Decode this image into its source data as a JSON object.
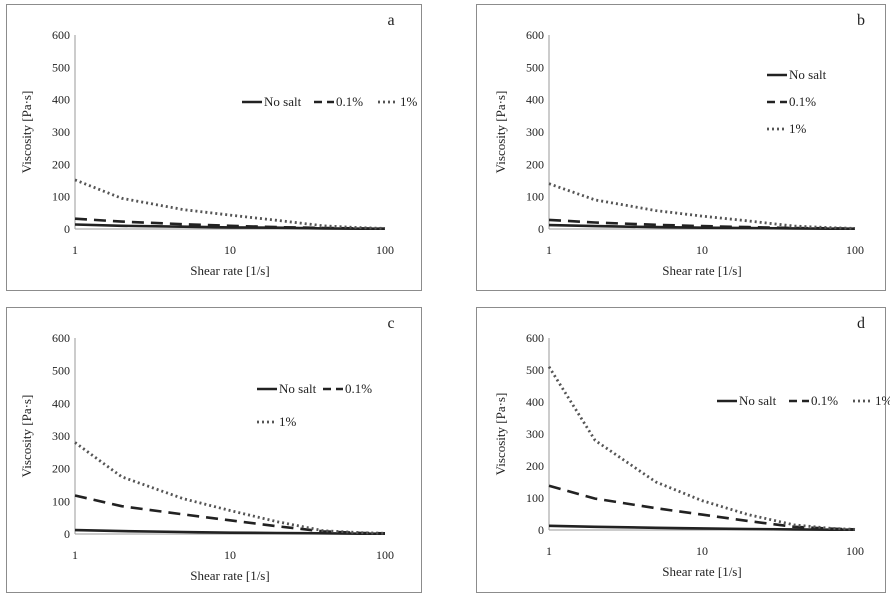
{
  "chart_data": [
    {
      "type": "line",
      "panel_label": "a",
      "xlabel": "Shear rate [1/s]",
      "ylabel": "Viscosity [Pa·s]",
      "x_scale": "log",
      "x_ticks": [
        "1",
        "10",
        "100"
      ],
      "y_ticks": [
        "0",
        "100",
        "200",
        "300",
        "400",
        "500",
        "600"
      ],
      "xlim": [
        1,
        100
      ],
      "ylim": [
        0,
        600
      ],
      "legend_position": "upper-right, single row",
      "series": [
        {
          "name": "No salt",
          "style": "solid",
          "x": [
            1,
            2,
            5,
            10,
            20,
            40,
            70,
            100
          ],
          "values": [
            14,
            10,
            7,
            5,
            4,
            2,
            1,
            1
          ]
        },
        {
          "name": "0.1%",
          "style": "dashed",
          "x": [
            1,
            2,
            5,
            10,
            20,
            40,
            70,
            100
          ],
          "values": [
            32,
            23,
            15,
            10,
            6,
            3,
            2,
            1
          ]
        },
        {
          "name": "1%",
          "style": "dotted",
          "x": [
            1,
            2,
            5,
            10,
            20,
            40,
            70,
            100
          ],
          "values": [
            152,
            95,
            60,
            43,
            27,
            10,
            4,
            2
          ]
        }
      ]
    },
    {
      "type": "line",
      "panel_label": "b",
      "xlabel": "Shear rate [1/s]",
      "ylabel": "Viscosity [Pa·s]",
      "x_scale": "log",
      "x_ticks": [
        "1",
        "10",
        "100"
      ],
      "y_ticks": [
        "0",
        "100",
        "200",
        "300",
        "400",
        "500",
        "600"
      ],
      "xlim": [
        1,
        100
      ],
      "ylim": [
        0,
        600
      ],
      "legend_position": "right, stacked",
      "series": [
        {
          "name": "No salt",
          "style": "solid",
          "x": [
            1,
            2,
            5,
            10,
            20,
            40,
            70,
            100
          ],
          "values": [
            12,
            9,
            6,
            4,
            3,
            2,
            1,
            1
          ]
        },
        {
          "name": "0.1%",
          "style": "dashed",
          "x": [
            1,
            2,
            5,
            10,
            20,
            40,
            70,
            100
          ],
          "values": [
            28,
            20,
            13,
            9,
            6,
            3,
            2,
            1
          ]
        },
        {
          "name": "1%",
          "style": "dotted",
          "x": [
            1,
            2,
            5,
            10,
            20,
            40,
            70,
            100
          ],
          "values": [
            140,
            90,
            57,
            40,
            25,
            9,
            4,
            2
          ]
        }
      ]
    },
    {
      "type": "line",
      "panel_label": "c",
      "xlabel": "Shear rate [1/s]",
      "ylabel": "Viscosity [Pa·s]",
      "x_scale": "log",
      "x_ticks": [
        "1",
        "10",
        "100"
      ],
      "y_ticks": [
        "0",
        "100",
        "200",
        "300",
        "400",
        "500",
        "600"
      ],
      "xlim": [
        1,
        100
      ],
      "ylim": [
        0,
        600
      ],
      "legend_position": "right, two rows",
      "series": [
        {
          "name": "No salt",
          "style": "solid",
          "x": [
            1,
            2,
            5,
            10,
            20,
            40,
            70,
            100
          ],
          "values": [
            12,
            9,
            6,
            4,
            3,
            2,
            1,
            1
          ]
        },
        {
          "name": "0.1%",
          "style": "dashed",
          "x": [
            1,
            2,
            5,
            10,
            20,
            40,
            70,
            100
          ],
          "values": [
            118,
            85,
            60,
            42,
            24,
            8,
            3,
            2
          ]
        },
        {
          "name": "1%",
          "style": "dotted",
          "x": [
            1,
            2,
            5,
            10,
            20,
            40,
            70,
            100
          ],
          "values": [
            280,
            175,
            108,
            72,
            38,
            10,
            4,
            2
          ]
        }
      ]
    },
    {
      "type": "line",
      "panel_label": "d",
      "xlabel": "Shear rate [1/s]",
      "ylabel": "Viscosity [Pa·s]",
      "x_scale": "log",
      "x_ticks": [
        "1",
        "10",
        "100"
      ],
      "y_ticks": [
        "0",
        "100",
        "200",
        "300",
        "400",
        "500",
        "600"
      ],
      "xlim": [
        1,
        100
      ],
      "ylim": [
        0,
        600
      ],
      "legend_position": "upper-right, single row",
      "series": [
        {
          "name": "No salt",
          "style": "solid",
          "x": [
            1,
            2,
            5,
            10,
            20,
            40,
            70,
            100
          ],
          "values": [
            13,
            10,
            7,
            5,
            3,
            2,
            1,
            1
          ]
        },
        {
          "name": "0.1%",
          "style": "dashed",
          "x": [
            1,
            2,
            5,
            10,
            20,
            40,
            70,
            100
          ],
          "values": [
            138,
            98,
            68,
            48,
            28,
            10,
            4,
            2
          ]
        },
        {
          "name": "1%",
          "style": "dotted",
          "x": [
            1,
            2,
            5,
            10,
            20,
            40,
            70,
            100
          ],
          "values": [
            510,
            280,
            150,
            92,
            48,
            16,
            5,
            2
          ]
        }
      ]
    }
  ]
}
